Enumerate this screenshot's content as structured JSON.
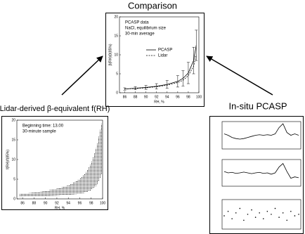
{
  "title": "Comparison",
  "left_label": "Lidar-derived β-equivalent f(RH)",
  "right_label": "In-situ PCASP",
  "chart_data": [
    {
      "type": "line",
      "annotations": [
        "PCASP data",
        "NaCl, equilibrium size",
        "30-min average"
      ],
      "x_label": "RH, %",
      "y_label": "β(RH)/β(85%)",
      "x": [
        86,
        88,
        90,
        92,
        94,
        96,
        97,
        98,
        99,
        99.5
      ],
      "series": [
        {
          "name": "PCASP",
          "style": "solid",
          "color": "#000000",
          "values": [
            1.0,
            1.2,
            1.4,
            1.7,
            2.2,
            3.0,
            3.8,
            5.2,
            8.5,
            12.5
          ],
          "errors": [
            0.3,
            0.4,
            0.5,
            0.7,
            1.0,
            1.5,
            2.0,
            2.8,
            3.5,
            4.0
          ]
        },
        {
          "name": "Lidar",
          "style": "dashed",
          "color": "#000000",
          "values": [
            1.0,
            1.1,
            1.3,
            1.6,
            2.0,
            2.7,
            3.3,
            4.5,
            7.0,
            10.0
          ]
        }
      ],
      "xlim": [
        85,
        100
      ],
      "ylim": [
        0,
        20
      ],
      "xticks": [
        86,
        88,
        90,
        92,
        94,
        96,
        98,
        100
      ],
      "yticks": [
        0,
        5,
        10,
        15,
        20
      ]
    },
    {
      "type": "band",
      "annotations": [
        "Beginning time: 13.00",
        "30-minute sample"
      ],
      "x_label": "RH, %",
      "y_label": "f(RH)/f(85%)",
      "x": [
        85.5,
        88,
        90,
        92,
        94,
        96,
        97,
        98,
        99,
        99.5,
        100
      ],
      "upper": [
        1.2,
        1.6,
        2.0,
        2.6,
        3.4,
        5.0,
        6.5,
        9.0,
        13.5,
        17.0,
        20.0
      ],
      "lower": [
        0.5,
        0.6,
        0.7,
        0.8,
        1.0,
        1.3,
        1.6,
        2.2,
        3.5,
        5.0,
        7.0
      ],
      "color": "#000000",
      "xlim": [
        85,
        100
      ],
      "ylim": [
        0,
        20
      ],
      "xticks": [
        86,
        88,
        90,
        92,
        94,
        96,
        98,
        100
      ],
      "yticks": [
        0,
        5,
        10,
        15,
        20
      ]
    },
    {
      "type": "line",
      "color": "#000000",
      "ylim": [
        0,
        1
      ],
      "values": [
        0.55,
        0.5,
        0.42,
        0.38,
        0.36,
        0.38,
        0.42,
        0.46,
        0.5,
        0.52,
        0.5,
        0.52,
        0.5,
        0.55,
        0.78,
        0.92,
        0.6,
        0.5,
        0.55,
        0.5
      ]
    },
    {
      "type": "line",
      "color": "#000000",
      "ylim": [
        0,
        1
      ],
      "values": [
        0.55,
        0.5,
        0.52,
        0.48,
        0.5,
        0.53,
        0.5,
        0.47,
        0.5,
        0.52,
        0.48,
        0.5,
        0.45,
        0.5,
        0.72,
        0.85,
        0.55,
        0.3,
        0.35,
        0.32
      ]
    },
    {
      "type": "scatter",
      "color": "#000000",
      "ylim": [
        0,
        1
      ],
      "values": [
        0.45,
        0.6,
        0.35,
        0.55,
        0.7,
        0.3,
        0.5,
        0.65,
        0.4,
        0.55,
        0.35,
        0.6,
        0.5,
        0.7,
        0.4,
        0.55,
        0.3,
        0.6,
        0.45,
        0.5
      ]
    }
  ]
}
